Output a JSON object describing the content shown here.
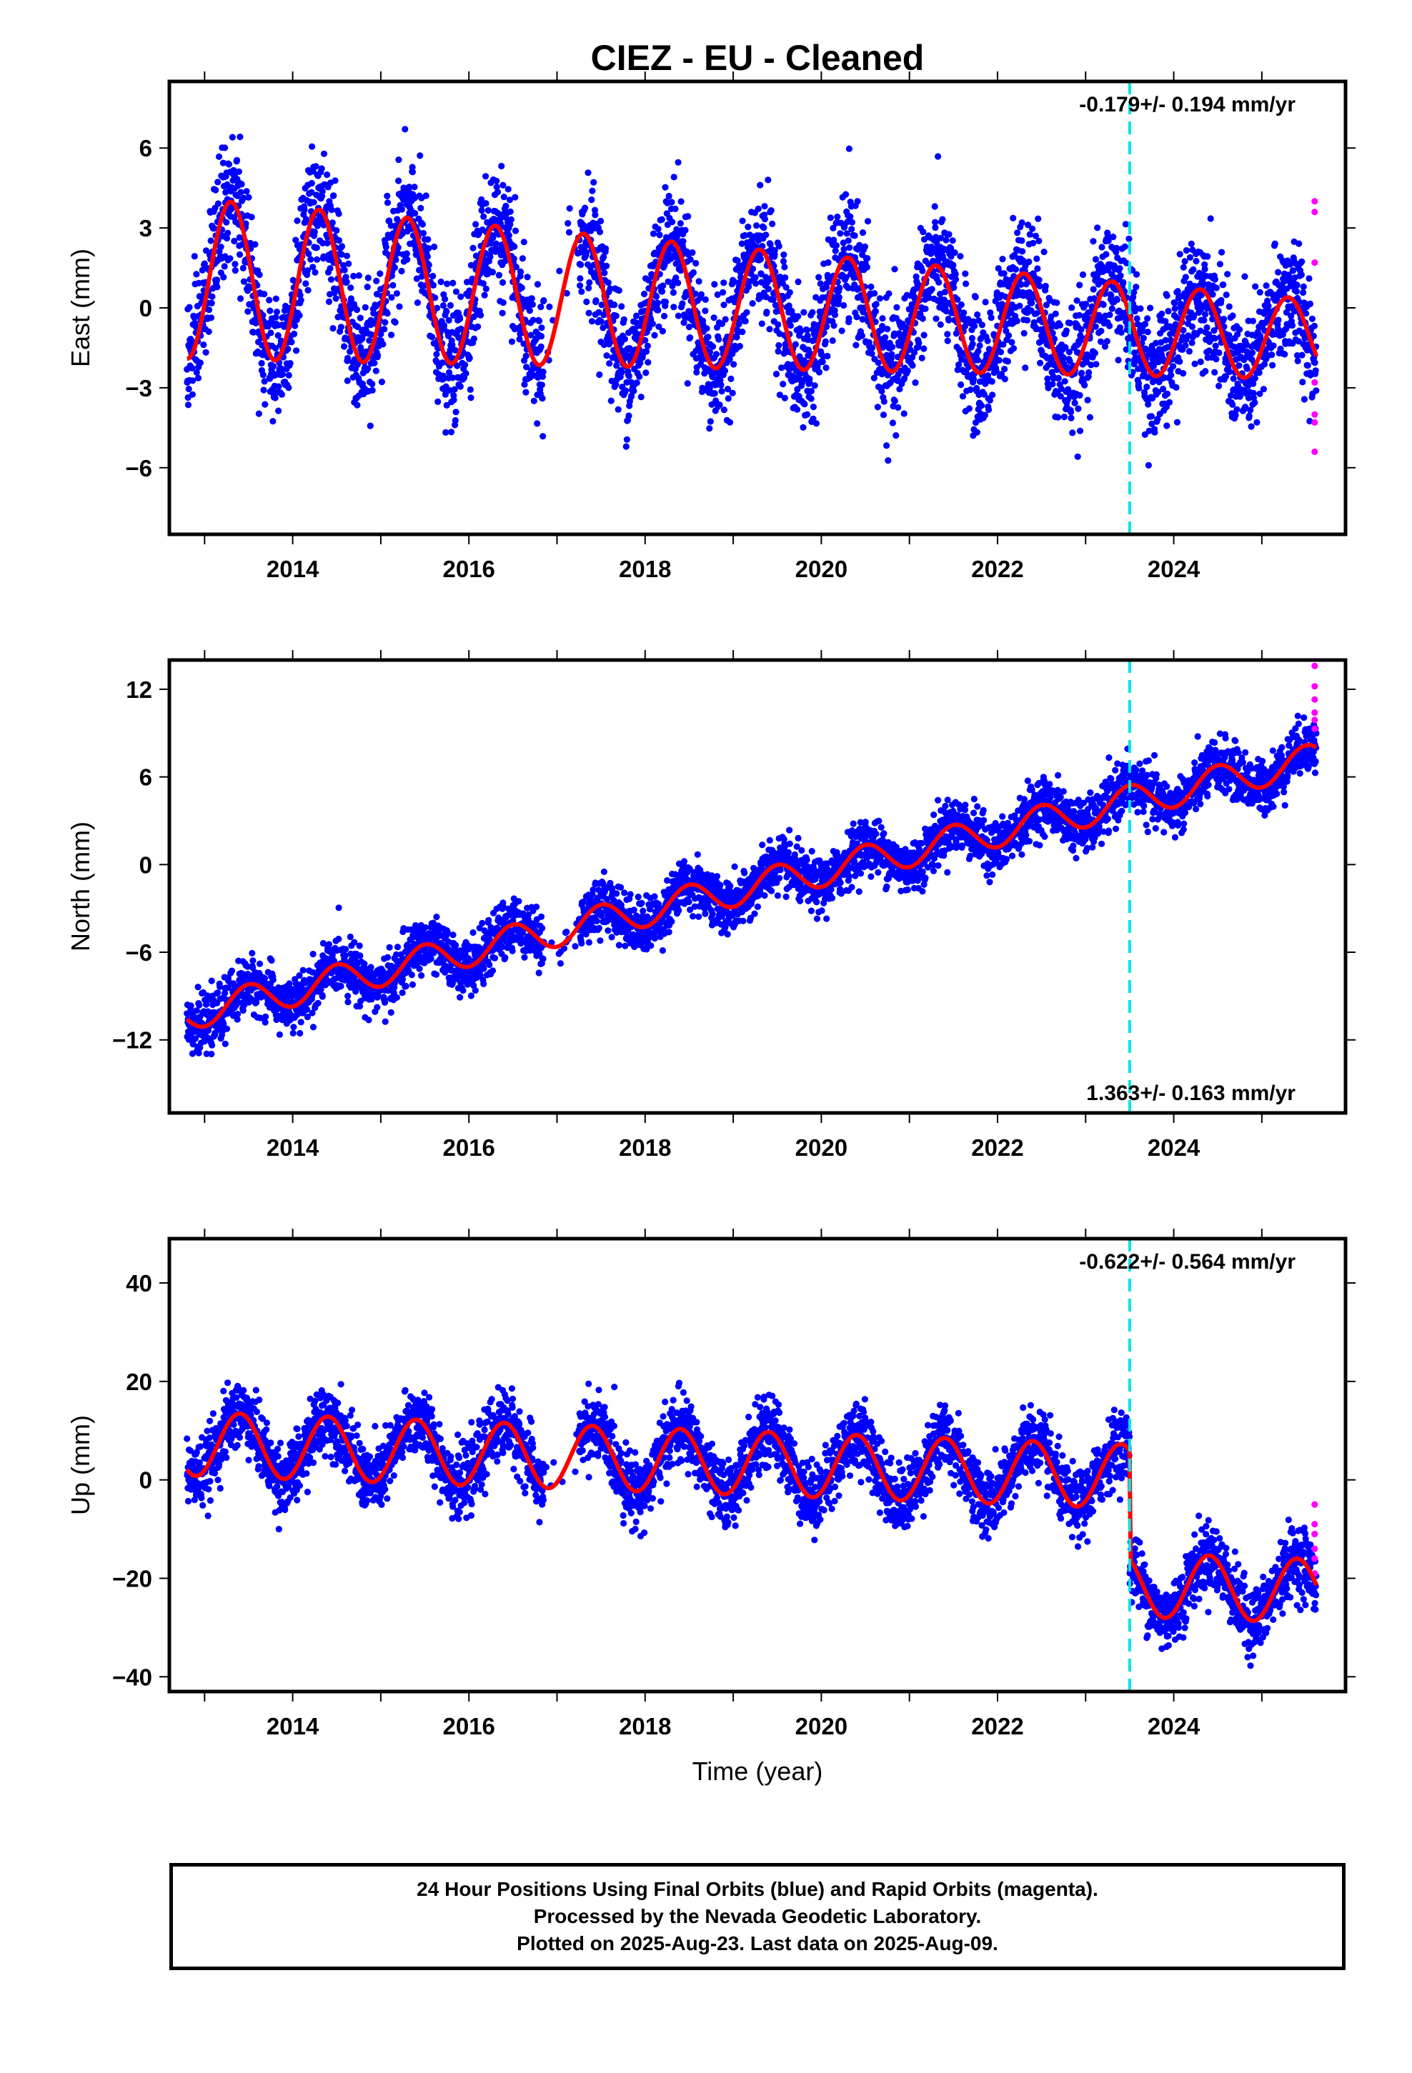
{
  "title": "CIEZ  - EU - Cleaned",
  "footer": {
    "line1": "24 Hour Positions Using Final Orbits (blue) and Rapid Orbits (magenta).",
    "line2": "Processed by the Nevada Geodetic Laboratory.",
    "line3": "Plotted on 2025-Aug-23. Last data on 2025-Aug-09."
  },
  "colors": {
    "final_orbits": "#0000ff",
    "rapid_orbits": "#ff00ff",
    "model_fit": "#ff0000",
    "event_line": "#00e5e5"
  },
  "chart_data": [
    {
      "type": "scatter",
      "xlabel": "",
      "ylabel": "East (mm)",
      "xlim": [
        2012.6,
        2025.95
      ],
      "ylim": [
        -8.5,
        8.5
      ],
      "xticks": [
        2014,
        2016,
        2018,
        2020,
        2022,
        2024
      ],
      "yticks": [
        -6,
        -3,
        0,
        3,
        6
      ],
      "rate_text": "-0.179+/- 0.194 mm/yr",
      "rate_position": "top-right",
      "event_line_x": 2023.5,
      "model": {
        "trend": -0.179,
        "annual_amp": 3.0,
        "annual_phase": 2013.3,
        "offset_at_event": 0.0,
        "level": 0.0,
        "amp_decay": 0.04
      },
      "data_span": [
        2012.8,
        2025.62
      ],
      "series": [
        {
          "name": "",
          "style": "points",
          "color": "#0000ff",
          "noise_sd": 1.15,
          "approx_count": 4300
        },
        {
          "name": "",
          "style": "points",
          "color": "#ff00ff",
          "values_x": [
            2025.6,
            2025.6,
            2025.6,
            2025.6,
            2025.6,
            2025.6,
            2025.6
          ],
          "values_y": [
            4.0,
            3.6,
            1.7,
            -2.8,
            -4.0,
            -4.3,
            -5.4
          ]
        },
        {
          "name": "",
          "style": "line",
          "color": "#ff0000"
        }
      ]
    },
    {
      "type": "scatter",
      "xlabel": "",
      "ylabel": "North (mm)",
      "xlim": [
        2012.6,
        2025.95
      ],
      "ylim": [
        -17,
        14
      ],
      "xticks": [
        2014,
        2016,
        2018,
        2020,
        2022,
        2024
      ],
      "yticks": [
        -12,
        -6,
        0,
        6,
        12
      ],
      "rate_text": "1.363+/- 0.163 mm/yr",
      "rate_position": "bottom-right",
      "event_line_x": 2023.5,
      "model": {
        "trend": 1.363,
        "annual_amp": 1.1,
        "annual_phase": 2013.5,
        "offset_at_event": 0.0,
        "level": -1.8,
        "amp_decay": 0.0
      },
      "data_span": [
        2012.8,
        2025.62
      ],
      "series": [
        {
          "name": "",
          "style": "points",
          "color": "#0000ff",
          "noise_sd": 0.9,
          "approx_count": 4300
        },
        {
          "name": "",
          "style": "points",
          "color": "#ff00ff",
          "values_x": [
            2025.6,
            2025.6,
            2025.6,
            2025.6,
            2025.6,
            2025.6
          ],
          "values_y": [
            13.6,
            12.2,
            11.3,
            10.4,
            9.9,
            9.3
          ]
        },
        {
          "name": "",
          "style": "line",
          "color": "#ff0000"
        }
      ]
    },
    {
      "type": "scatter",
      "xlabel": "Time (year)",
      "ylabel": "Up (mm)",
      "xlim": [
        2012.6,
        2025.95
      ],
      "ylim": [
        -43,
        49
      ],
      "xticks": [
        2014,
        2016,
        2018,
        2020,
        2022,
        2024
      ],
      "yticks": [
        -40,
        -20,
        0,
        20,
        40
      ],
      "rate_text": "-0.622+/- 0.564 mm/yr",
      "rate_position": "top-right",
      "event_line_x": 2023.5,
      "model": {
        "trend": -0.622,
        "annual_amp": 6.5,
        "annual_phase": 2013.4,
        "offset_at_event": -22.0,
        "level": 3.5,
        "amp_decay": 0.0
      },
      "data_span": [
        2012.8,
        2025.62
      ],
      "series": [
        {
          "name": "",
          "style": "points",
          "color": "#0000ff",
          "noise_sd": 3.4,
          "approx_count": 4300
        },
        {
          "name": "",
          "style": "points",
          "color": "#ff00ff",
          "values_x": [
            2025.6,
            2025.6,
            2025.6,
            2025.6,
            2025.6,
            2025.6
          ],
          "values_y": [
            -5.0,
            -9.0,
            -11.0,
            -14.0,
            -16.0,
            -19.0
          ]
        },
        {
          "name": "",
          "style": "line",
          "color": "#ff0000"
        }
      ]
    }
  ]
}
